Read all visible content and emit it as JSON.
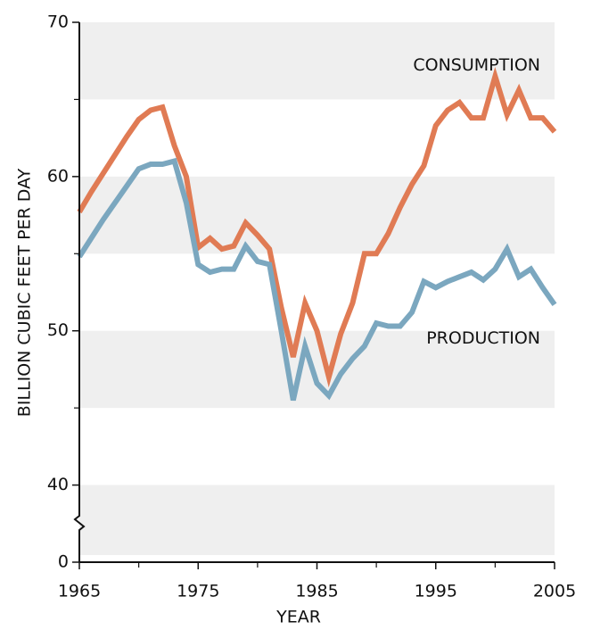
{
  "chart_data": {
    "type": "line",
    "x_label": "YEAR",
    "y_label": "BILLION CUBIC FEET PER DAY",
    "x": [
      1965,
      1966,
      1967,
      1968,
      1969,
      1970,
      1971,
      1972,
      1973,
      1974,
      1975,
      1976,
      1977,
      1978,
      1979,
      1980,
      1981,
      1982,
      1983,
      1984,
      1985,
      1986,
      1987,
      1988,
      1989,
      1990,
      1991,
      1992,
      1993,
      1994,
      1995,
      1996,
      1997,
      1998,
      1999,
      2000,
      2001,
      2002,
      2003,
      2004,
      2005
    ],
    "series": [
      {
        "name": "CONSUMPTION",
        "color": "#e07b54",
        "values": [
          57.7,
          59,
          60.2,
          61.4,
          62.6,
          63.7,
          64.3,
          64.5,
          62,
          60,
          55.4,
          56,
          55.3,
          55.5,
          57,
          56.2,
          55.3,
          51.5,
          48.3,
          51.8,
          50,
          47,
          49.8,
          51.8,
          55,
          55,
          56.3,
          58,
          59.5,
          60.7,
          63.3,
          64.3,
          64.8,
          63.8,
          63.8,
          66.5,
          64,
          65.6,
          63.8,
          63.8,
          62.9
        ]
      },
      {
        "name": "PRODUCTION",
        "color": "#7ba7bf",
        "values": [
          54.8,
          56,
          57.2,
          58.3,
          59.4,
          60.5,
          60.8,
          60.8,
          61,
          58.3,
          54.3,
          53.8,
          54,
          54,
          55.5,
          54.5,
          54.3,
          50,
          45.5,
          49,
          46.6,
          45.8,
          47.2,
          48.2,
          49,
          50.5,
          50.3,
          50.3,
          51.2,
          53.2,
          52.8,
          53.2,
          53.5,
          53.8,
          53.3,
          54,
          55.3,
          53.5,
          54,
          52.8,
          51.7
        ]
      }
    ],
    "xlim": [
      1965,
      2005
    ],
    "xticks": [
      1965,
      1975,
      1985,
      1995,
      2005
    ],
    "xminorticks": [
      1970,
      1980,
      1990,
      2000
    ],
    "ylim": [
      35,
      70
    ],
    "yticks": [
      0,
      40,
      50,
      60,
      70
    ],
    "yminorticks": [
      45,
      55,
      65
    ],
    "axis_break": true,
    "bands": true
  }
}
